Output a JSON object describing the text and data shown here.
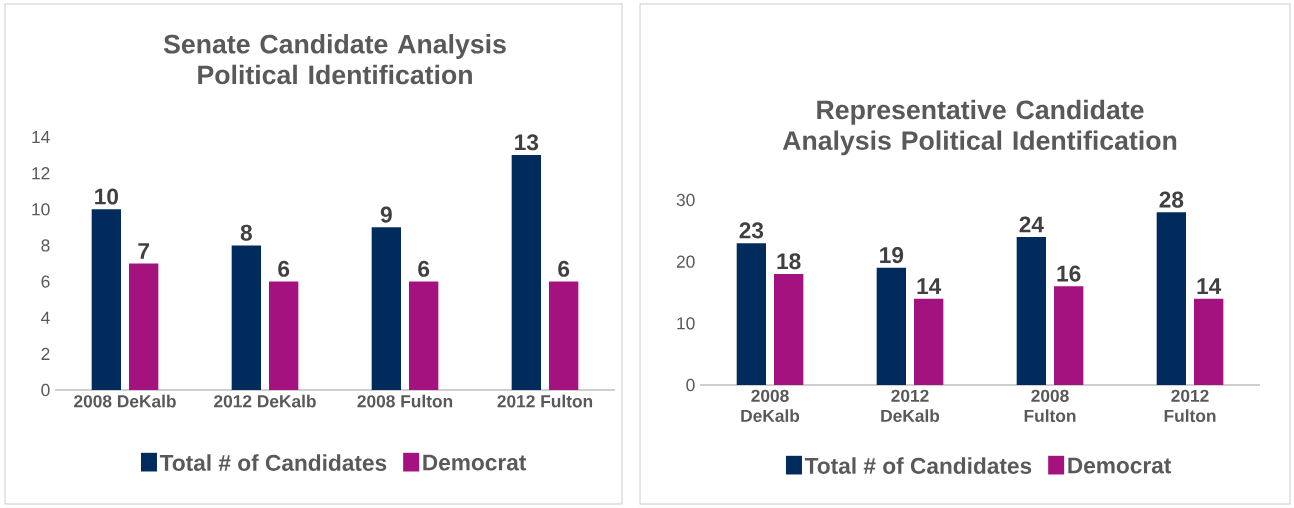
{
  "chart_data": [
    {
      "type": "bar",
      "title": "Senate Candidate Analysis Political Identification",
      "categories": [
        "2008 DeKalb",
        "2012 DeKalb",
        "2008 Fulton",
        "2012 Fulton"
      ],
      "series": [
        {
          "name": "Total # of Candidates",
          "color": "#002b5c",
          "values": [
            10,
            8,
            9,
            13
          ]
        },
        {
          "name": "Democrat",
          "color": "#a3127f",
          "values": [
            7,
            6,
            6,
            6
          ]
        }
      ],
      "ylim": [
        0,
        14
      ],
      "yticks": [
        0,
        2,
        4,
        6,
        8,
        10,
        12,
        14
      ],
      "data_labels": true,
      "legend": "bottom"
    },
    {
      "type": "bar",
      "title": "Representative Candidate Analysis Political Identification",
      "categories": [
        "2008 DeKalb",
        "2012 DeKalb",
        "2008 Fulton",
        "2012 Fulton"
      ],
      "series": [
        {
          "name": "Total # of Candidates",
          "color": "#002b5c",
          "values": [
            23,
            19,
            24,
            28
          ]
        },
        {
          "name": "Democrat",
          "color": "#a3127f",
          "values": [
            18,
            14,
            16,
            14
          ]
        }
      ],
      "ylim": [
        0,
        30
      ],
      "yticks": [
        0,
        10,
        20,
        30
      ],
      "data_labels": true,
      "legend": "bottom"
    }
  ]
}
